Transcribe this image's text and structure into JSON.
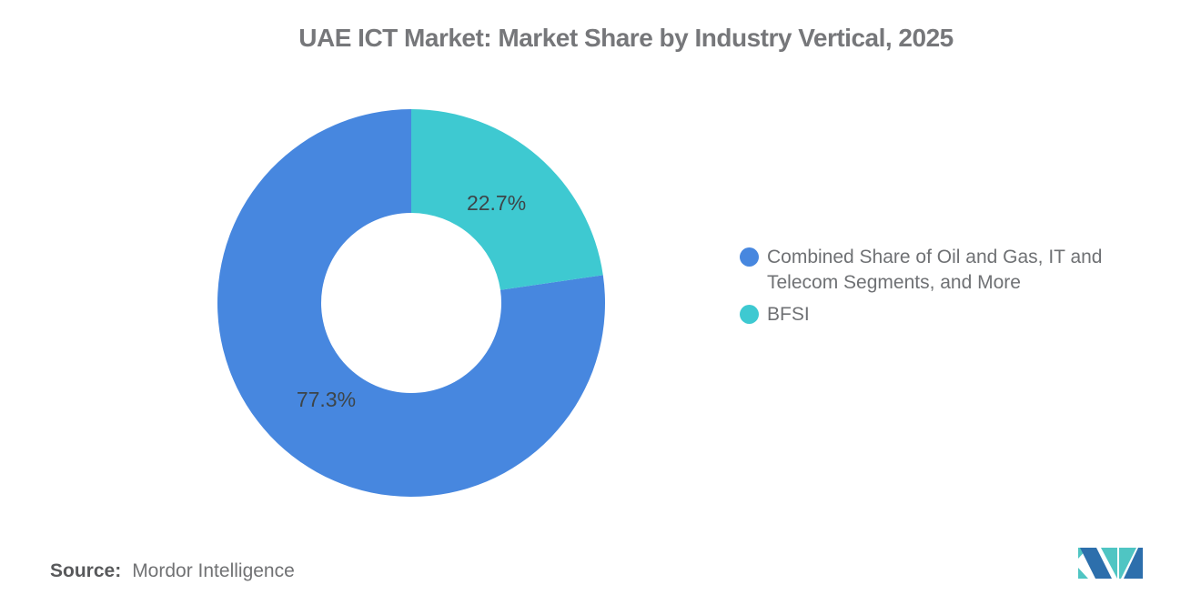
{
  "chart_data": {
    "type": "pie",
    "title": "UAE ICT Market: Market Share by Industry Vertical, 2025",
    "slices": [
      {
        "label": "Combined Share of Oil and Gas, IT and Telecom Segments, and More",
        "value": 77.3,
        "data_label": "77.3%",
        "color": "#4787DF"
      },
      {
        "label": "BFSI",
        "value": 22.7,
        "data_label": "22.7%",
        "color": "#3EC9D1"
      }
    ],
    "start_angle_deg": 81.72,
    "direction": "clockwise",
    "inner_radius_ratio": 0.465,
    "legend_position": "right",
    "grid": false
  },
  "source": {
    "label": "Source:",
    "value": "Mordor Intelligence"
  },
  "logo": {
    "name": "mordor-intelligence-logo",
    "blue": "#2D6FAC",
    "teal": "#4FC5C3"
  }
}
